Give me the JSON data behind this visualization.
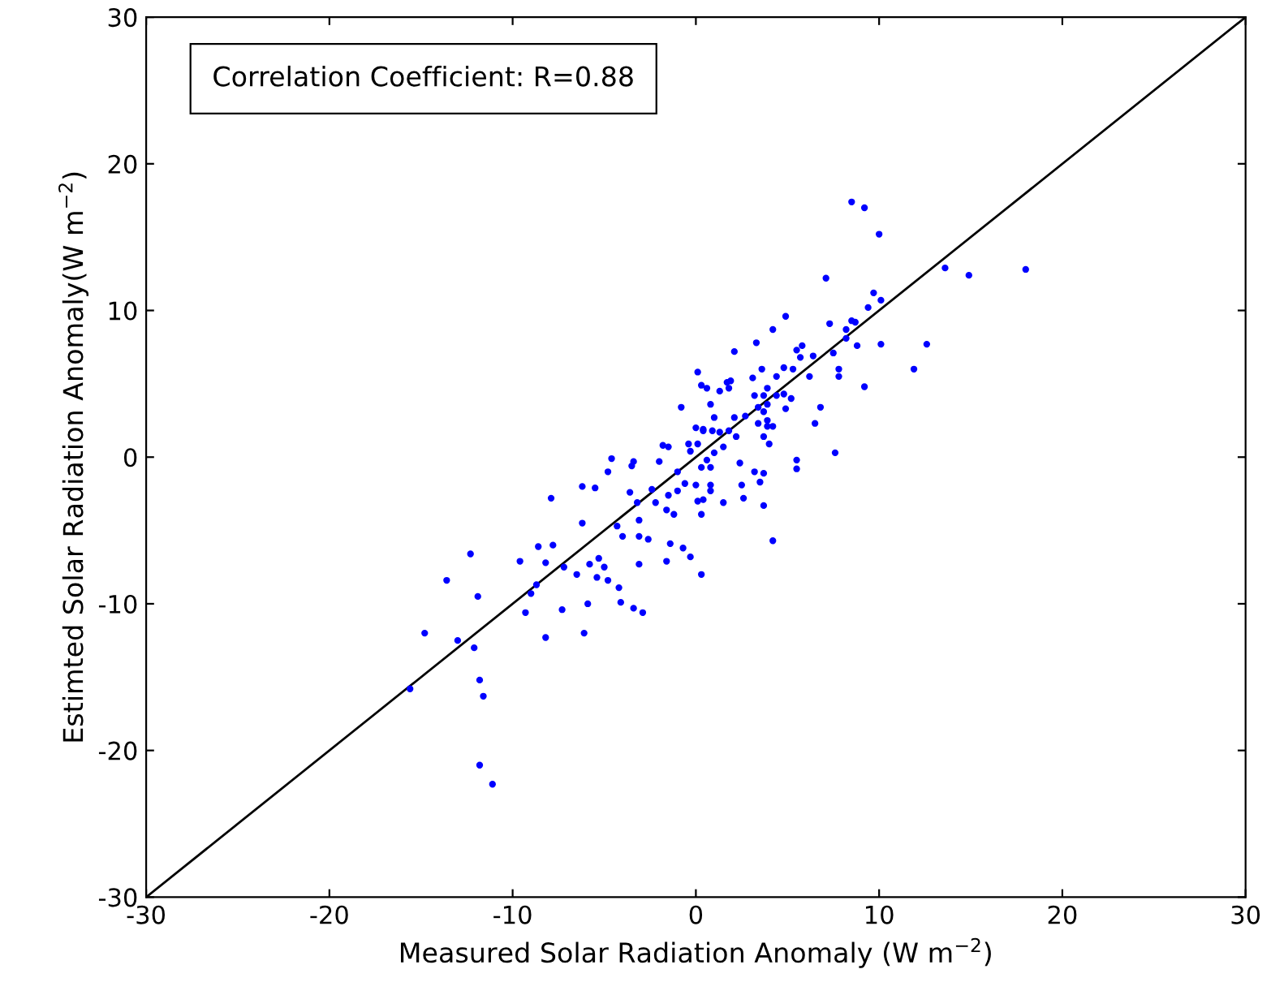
{
  "chart_data": {
    "type": "scatter",
    "xlabel": "Measured Solar Radiation Anomaly (W m$^{−2}$)",
    "ylabel": "Estimted Solar Radiation Anomaly(W m$^{−2}$)",
    "annotations": [
      "Correlation Coefficient: R=0.88"
    ],
    "xlim": [
      -30,
      30
    ],
    "ylim": [
      -30,
      30
    ],
    "xticks": [
      -30,
      -20,
      -10,
      0,
      10,
      20,
      30
    ],
    "yticks": [
      -30,
      -20,
      -10,
      0,
      10,
      20,
      30
    ],
    "grid": false,
    "marker": "circle",
    "series": [
      {
        "color": "#0000ff",
        "x": [
          -15.6,
          -11.1,
          -11.8,
          -11.8,
          -11.6,
          -14.8,
          -13.0,
          -12.1,
          -13.6,
          -12.3,
          -11.9,
          -9.6,
          -8.6,
          -7.8,
          -8.2,
          -7.9,
          -8.7,
          -9.0,
          -9.3,
          -8.2,
          -7.3,
          -7.2,
          -6.5,
          -6.1,
          -5.9,
          -5.8,
          -6.2,
          -6.2,
          -5.5,
          -5.3,
          -5.0,
          -5.4,
          -4.8,
          -4.2,
          -4.1,
          -3.4,
          -2.9,
          -3.1,
          -4.6,
          -4.8,
          -4.3,
          -4.0,
          -3.6,
          -3.5,
          -3.1,
          -3.1,
          -3.2,
          -2.4,
          -2.2,
          -2.6,
          -1.6,
          -1.4,
          -0.7,
          -0.3,
          0.3,
          -1.6,
          -1.2,
          -1.5,
          -2.0,
          -3.4,
          -1.8,
          -1.5,
          -0.8,
          -0.4,
          0.1,
          0.3,
          0.0,
          0.4,
          0.1,
          -0.3,
          0.0,
          0.1,
          -0.6,
          -1.0,
          -1.0,
          8.5,
          9.2,
          10.0,
          13.6,
          14.9,
          18.0,
          7.1,
          9.7,
          10.1,
          9.4,
          7.3,
          8.2,
          8.5,
          8.7,
          8.2,
          8.8,
          10.1,
          12.6,
          11.9,
          9.2,
          7.5,
          7.8,
          7.8,
          6.8,
          6.5,
          7.6,
          5.5,
          5.5,
          4.9,
          4.2,
          3.3,
          2.1,
          5.5,
          5.8,
          6.4,
          5.7,
          5.3,
          4.8,
          4.4,
          3.6,
          3.1,
          6.2,
          1.9,
          1.7,
          0.6,
          1.3,
          1.8,
          0.8,
          3.9,
          3.7,
          3.2,
          3.9,
          4.4,
          4.8,
          5.2,
          4.9,
          3.4,
          3.7,
          3.9,
          2.7,
          2.1,
          1.0,
          1.3,
          0.9,
          0.4,
          2.2,
          1.8,
          3.4,
          3.9,
          4.2,
          3.7,
          4.0,
          1.5,
          1.0,
          0.6,
          0.3,
          0.8,
          2.4,
          3.2,
          3.7,
          3.5,
          2.5,
          0.8,
          0.8,
          2.6,
          1.5,
          0.4,
          0.3,
          3.7,
          4.2
        ],
        "values": [
          -15.8,
          -22.3,
          -21.0,
          -15.2,
          -16.3,
          -12.0,
          -12.5,
          -13.0,
          -8.4,
          -6.6,
          -9.5,
          -7.1,
          -6.1,
          -6.0,
          -7.2,
          -2.8,
          -8.7,
          -9.3,
          -10.6,
          -12.3,
          -10.4,
          -7.5,
          -8.0,
          -12.0,
          -10.0,
          -7.3,
          -4.5,
          -2.0,
          -2.1,
          -6.9,
          -7.5,
          -8.2,
          -8.4,
          -8.9,
          -9.9,
          -10.3,
          -10.6,
          -7.3,
          -0.1,
          -1.0,
          -4.7,
          -5.4,
          -2.4,
          -0.6,
          -5.4,
          -4.3,
          -3.1,
          -2.2,
          -3.1,
          -5.6,
          -7.1,
          -5.9,
          -6.2,
          -6.8,
          -8.0,
          -3.6,
          -3.9,
          -2.6,
          -0.3,
          -0.3,
          0.8,
          0.7,
          3.4,
          0.9,
          5.8,
          4.9,
          2.0,
          1.8,
          0.9,
          0.4,
          -1.9,
          -3.0,
          -1.8,
          -1.0,
          -2.3,
          17.4,
          17.0,
          15.2,
          12.9,
          12.4,
          12.8,
          12.2,
          11.2,
          10.7,
          10.2,
          9.1,
          8.7,
          9.3,
          9.2,
          8.1,
          7.6,
          7.7,
          7.7,
          6.0,
          4.8,
          7.1,
          6.0,
          5.5,
          3.4,
          2.3,
          0.3,
          -0.2,
          -0.8,
          9.6,
          8.7,
          7.8,
          7.2,
          7.3,
          7.6,
          6.9,
          6.8,
          6.0,
          6.1,
          5.5,
          6.0,
          5.4,
          5.5,
          5.2,
          5.1,
          4.7,
          4.5,
          4.7,
          3.6,
          4.7,
          4.2,
          4.2,
          3.6,
          4.2,
          4.3,
          4.0,
          3.3,
          3.4,
          3.1,
          2.5,
          2.8,
          2.7,
          2.7,
          1.7,
          1.8,
          1.9,
          1.4,
          1.8,
          2.3,
          2.1,
          2.1,
          1.4,
          0.9,
          0.7,
          0.3,
          -0.2,
          -0.7,
          -0.7,
          -0.4,
          -1.0,
          -1.1,
          -1.7,
          -1.9,
          -1.9,
          -2.3,
          -2.8,
          -3.1,
          -2.9,
          -3.9,
          -3.3,
          -5.7
        ]
      },
      {
        "type": "line",
        "color": "#000000",
        "marker": "none",
        "x": [
          -30,
          30
        ],
        "values": [
          -30,
          30
        ]
      }
    ]
  }
}
